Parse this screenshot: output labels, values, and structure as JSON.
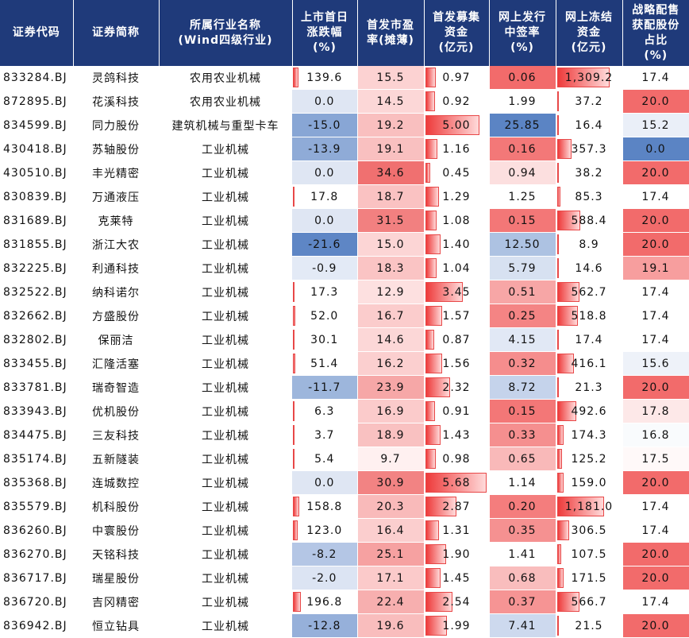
{
  "headers": {
    "code": "证券代码",
    "name": "证券简称",
    "industry": "所属行业名称\n(Wind四级行业)",
    "first_day": "上市首日\n涨跌幅\n(%)",
    "pe": "首发市盈\n率(摊薄)",
    "raised": "首发募集\n资金\n(亿元)",
    "win_rate": "网上发行\n中签率\n(%)",
    "frozen": "网上冻结\n资金\n(亿元)",
    "strategic": "战略配售\n获配股份\n占比\n(%)"
  },
  "colors": {
    "header_bg": "#1f3a7a",
    "red_strong": "#f26b6b",
    "blue_strong": "#5b84c4",
    "neutral": "#ffffff"
  },
  "rows": [
    {
      "code": "833284.BJ",
      "name": "灵鸽科技",
      "industry": "农用农业机械",
      "first_day": "139.6",
      "pe": "15.5",
      "raised": "0.97",
      "win_rate": "0.06",
      "frozen": "1,309.2",
      "strategic": "17.4"
    },
    {
      "code": "872895.BJ",
      "name": "花溪科技",
      "industry": "农用农业机械",
      "first_day": "0.0",
      "pe": "14.5",
      "raised": "0.92",
      "win_rate": "1.99",
      "frozen": "37.2",
      "strategic": "20.0"
    },
    {
      "code": "834599.BJ",
      "name": "同力股份",
      "industry": "建筑机械与重型卡车",
      "first_day": "-15.0",
      "pe": "19.2",
      "raised": "5.00",
      "win_rate": "25.85",
      "frozen": "16.4",
      "strategic": "15.2"
    },
    {
      "code": "430418.BJ",
      "name": "苏轴股份",
      "industry": "工业机械",
      "first_day": "-13.9",
      "pe": "19.1",
      "raised": "1.16",
      "win_rate": "0.16",
      "frozen": "357.3",
      "strategic": "0.0"
    },
    {
      "code": "430510.BJ",
      "name": "丰光精密",
      "industry": "工业机械",
      "first_day": "0.0",
      "pe": "34.6",
      "raised": "0.45",
      "win_rate": "0.94",
      "frozen": "38.2",
      "strategic": "20.0"
    },
    {
      "code": "830839.BJ",
      "name": "万通液压",
      "industry": "工业机械",
      "first_day": "17.8",
      "pe": "18.7",
      "raised": "1.29",
      "win_rate": "1.25",
      "frozen": "85.3",
      "strategic": "17.4"
    },
    {
      "code": "831689.BJ",
      "name": "克莱特",
      "industry": "工业机械",
      "first_day": "0.0",
      "pe": "31.5",
      "raised": "1.08",
      "win_rate": "0.15",
      "frozen": "588.4",
      "strategic": "20.0"
    },
    {
      "code": "831855.BJ",
      "name": "浙江大农",
      "industry": "工业机械",
      "first_day": "-21.6",
      "pe": "15.0",
      "raised": "1.40",
      "win_rate": "12.50",
      "frozen": "8.9",
      "strategic": "20.0"
    },
    {
      "code": "832225.BJ",
      "name": "利通科技",
      "industry": "工业机械",
      "first_day": "-0.9",
      "pe": "18.3",
      "raised": "1.04",
      "win_rate": "5.79",
      "frozen": "14.6",
      "strategic": "19.1"
    },
    {
      "code": "832522.BJ",
      "name": "纳科诺尔",
      "industry": "工业机械",
      "first_day": "17.3",
      "pe": "12.9",
      "raised": "3.45",
      "win_rate": "0.51",
      "frozen": "562.7",
      "strategic": "17.4"
    },
    {
      "code": "832662.BJ",
      "name": "方盛股份",
      "industry": "工业机械",
      "first_day": "52.0",
      "pe": "16.7",
      "raised": "1.57",
      "win_rate": "0.25",
      "frozen": "518.8",
      "strategic": "17.4"
    },
    {
      "code": "832802.BJ",
      "name": "保丽洁",
      "industry": "工业机械",
      "first_day": "30.1",
      "pe": "14.6",
      "raised": "0.87",
      "win_rate": "4.15",
      "frozen": "17.4",
      "strategic": "17.4"
    },
    {
      "code": "833455.BJ",
      "name": "汇隆活塞",
      "industry": "工业机械",
      "first_day": "51.4",
      "pe": "16.2",
      "raised": "1.56",
      "win_rate": "0.32",
      "frozen": "416.1",
      "strategic": "15.6"
    },
    {
      "code": "833781.BJ",
      "name": "瑞奇智造",
      "industry": "工业机械",
      "first_day": "-11.7",
      "pe": "23.9",
      "raised": "2.32",
      "win_rate": "8.72",
      "frozen": "21.3",
      "strategic": "20.0"
    },
    {
      "code": "833943.BJ",
      "name": "优机股份",
      "industry": "工业机械",
      "first_day": "6.3",
      "pe": "16.9",
      "raised": "0.91",
      "win_rate": "0.15",
      "frozen": "492.6",
      "strategic": "17.8"
    },
    {
      "code": "834475.BJ",
      "name": "三友科技",
      "industry": "工业机械",
      "first_day": "3.7",
      "pe": "18.9",
      "raised": "1.43",
      "win_rate": "0.33",
      "frozen": "174.3",
      "strategic": "16.8"
    },
    {
      "code": "835174.BJ",
      "name": "五新隧装",
      "industry": "工业机械",
      "first_day": "5.4",
      "pe": "9.7",
      "raised": "0.98",
      "win_rate": "0.65",
      "frozen": "125.2",
      "strategic": "17.5"
    },
    {
      "code": "835368.BJ",
      "name": "连城数控",
      "industry": "工业机械",
      "first_day": "0.0",
      "pe": "30.9",
      "raised": "5.68",
      "win_rate": "1.14",
      "frozen": "159.0",
      "strategic": "20.0"
    },
    {
      "code": "835579.BJ",
      "name": "机科股份",
      "industry": "工业机械",
      "first_day": "158.8",
      "pe": "20.3",
      "raised": "2.87",
      "win_rate": "0.20",
      "frozen": "1,181.0",
      "strategic": "17.4"
    },
    {
      "code": "836260.BJ",
      "name": "中寰股份",
      "industry": "工业机械",
      "first_day": "123.0",
      "pe": "16.4",
      "raised": "1.31",
      "win_rate": "0.35",
      "frozen": "306.5",
      "strategic": "17.4"
    },
    {
      "code": "836270.BJ",
      "name": "天铭科技",
      "industry": "工业机械",
      "first_day": "-8.2",
      "pe": "25.1",
      "raised": "1.90",
      "win_rate": "1.41",
      "frozen": "107.5",
      "strategic": "20.0"
    },
    {
      "code": "836717.BJ",
      "name": "瑞星股份",
      "industry": "工业机械",
      "first_day": "-2.0",
      "pe": "17.1",
      "raised": "1.45",
      "win_rate": "0.68",
      "frozen": "171.5",
      "strategic": "20.0"
    },
    {
      "code": "836720.BJ",
      "name": "吉冈精密",
      "industry": "工业机械",
      "first_day": "196.8",
      "pe": "22.4",
      "raised": "2.54",
      "win_rate": "0.37",
      "frozen": "566.7",
      "strategic": "17.4"
    },
    {
      "code": "836942.BJ",
      "name": "恒立钻具",
      "industry": "工业机械",
      "first_day": "-12.8",
      "pe": "19.6",
      "raised": "1.99",
      "win_rate": "7.41",
      "frozen": "21.5",
      "strategic": "20.0"
    }
  ]
}
